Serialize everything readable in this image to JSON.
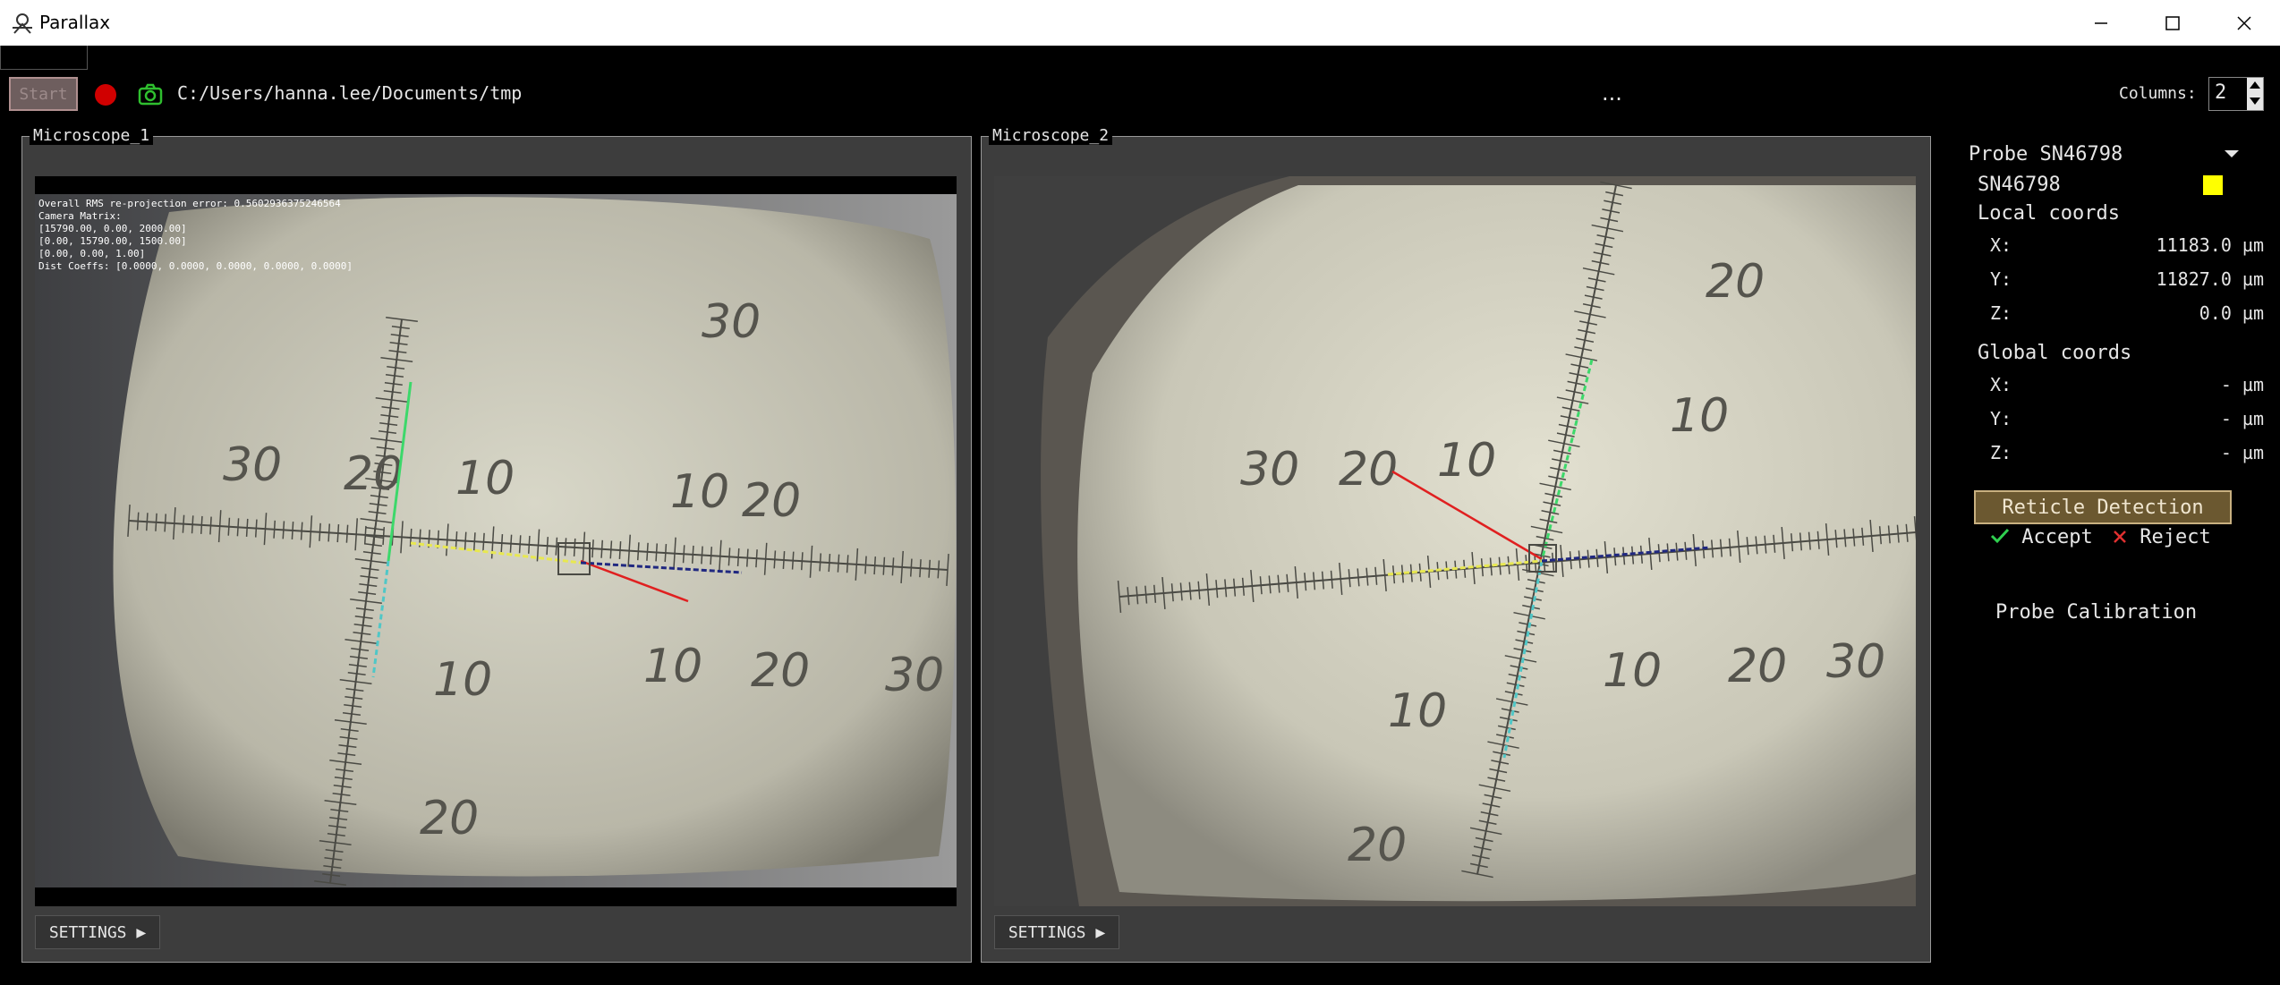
{
  "app": {
    "title": "Parallax"
  },
  "toolbar": {
    "start_label": "Start",
    "path": "C:/Users/hanna.lee/Documents/tmp",
    "more_label": "...",
    "columns_label": "Columns:",
    "columns_value": "2"
  },
  "microscopes": [
    {
      "title": "Microscope_1",
      "settings_label": "SETTINGS ▶",
      "overlay": [
        "Overall RMS re-projection error: 0.5602936375246564",
        "Camera Matrix:",
        "[15790.00, 0.00, 2000.00]",
        "[0.00, 15790.00, 1500.00]",
        "[0.00, 0.00, 1.00]",
        "Dist Coeffs: [0.0000, 0.0000, 0.0000, 0.0000, 0.0000]"
      ],
      "scale_labels": [
        "30",
        "20",
        "10",
        "10",
        "20",
        "30",
        "10",
        "20",
        "10",
        "20",
        "30"
      ]
    },
    {
      "title": "Microscope_2",
      "settings_label": "SETTINGS ▶",
      "scale_labels": [
        "30",
        "20",
        "10",
        "10",
        "20",
        "10",
        "20",
        "30",
        "10",
        "20"
      ]
    }
  ],
  "panel": {
    "probe_select": "Probe SN46798",
    "probe_id": "SN46798",
    "probe_color": "#ffff00",
    "local_title": "Local coords",
    "local": [
      {
        "label": "X:",
        "value": "11183.0 µm"
      },
      {
        "label": "Y:",
        "value": "11827.0 µm"
      },
      {
        "label": "Z:",
        "value": "0.0 µm"
      }
    ],
    "global_title": "Global coords",
    "global": [
      {
        "label": "X:",
        "value": "- µm"
      },
      {
        "label": "Y:",
        "value": "- µm"
      },
      {
        "label": "Z:",
        "value": "- µm"
      }
    ],
    "reticle_button": "Reticle Detection",
    "accept_label": "Accept",
    "reject_label": "Reject",
    "calibration_label": "Probe Calibration"
  }
}
